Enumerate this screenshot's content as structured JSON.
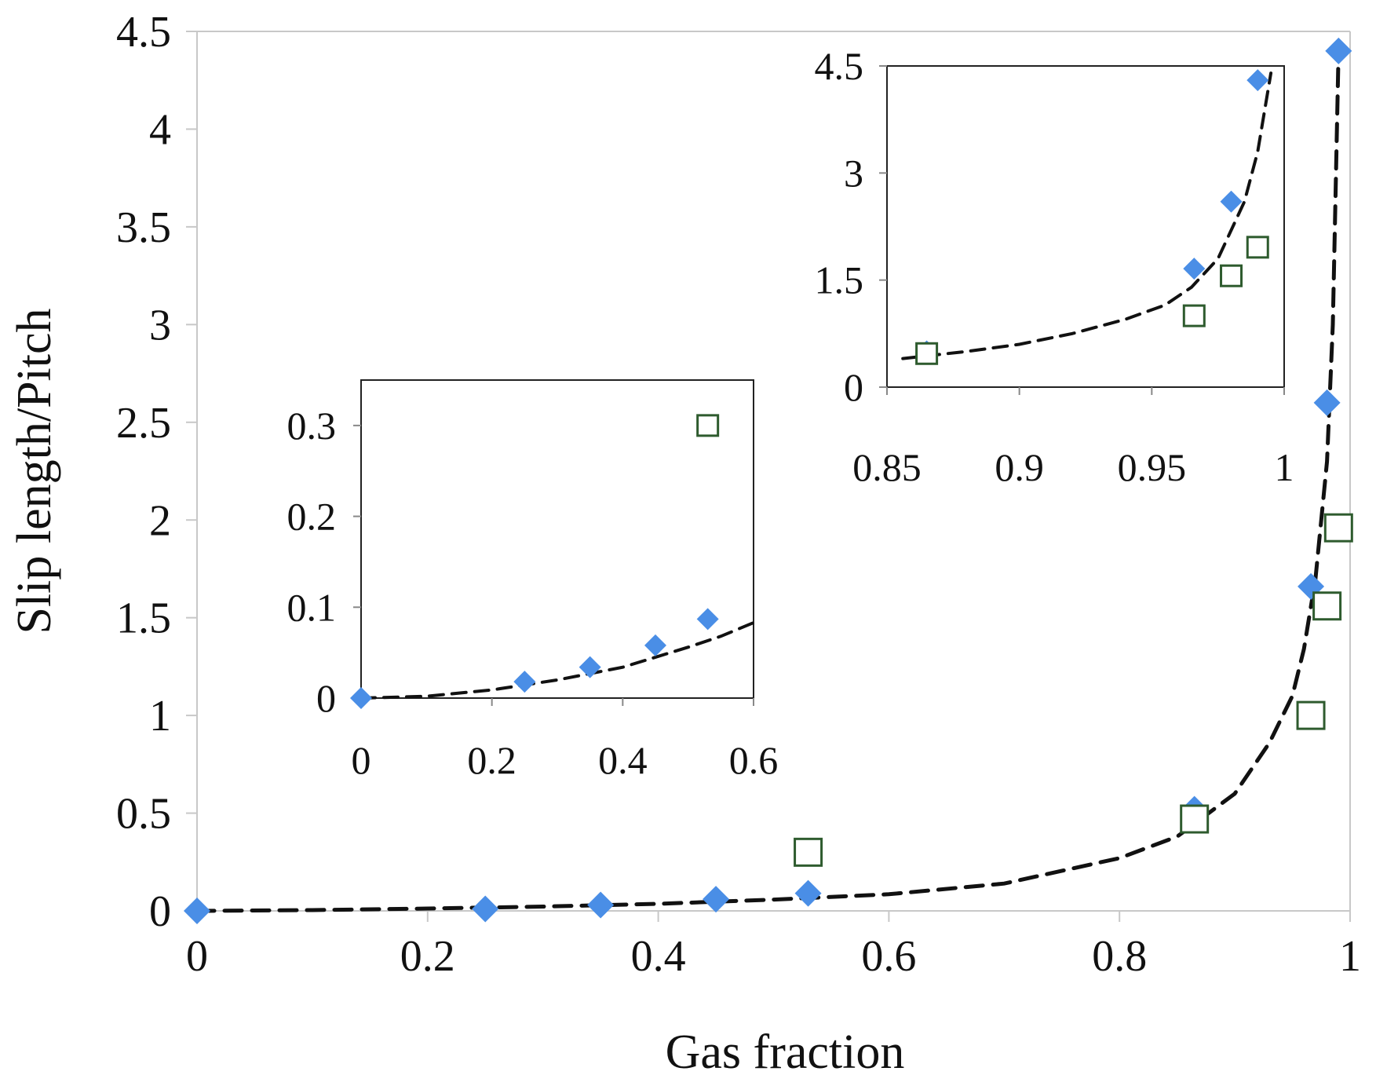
{
  "chart_data": [
    {
      "type": "scatter",
      "id": "main",
      "xlabel": "Gas fraction",
      "ylabel": "Slip length/Pitch",
      "xlim": [
        0,
        1
      ],
      "ylim": [
        0,
        4.5
      ],
      "xticks": [
        "0",
        "0.2",
        "0.4",
        "0.6",
        "0.8",
        "1"
      ],
      "yticks": [
        "0",
        "0.5",
        "1",
        "1.5",
        "2",
        "2.5",
        "3",
        "3.5",
        "4",
        "4.5"
      ],
      "series": [
        {
          "name": "filled diamonds",
          "marker": "diamond",
          "color": "#4a8ee6",
          "points": [
            [
              0,
              0
            ],
            [
              0.25,
              0.01
            ],
            [
              0.35,
              0.03
            ],
            [
              0.45,
              0.06
            ],
            [
              0.53,
              0.09
            ],
            [
              0.865,
              0.52
            ],
            [
              0.966,
              1.66
            ],
            [
              0.98,
              2.6
            ],
            [
              0.99,
              4.4
            ]
          ]
        },
        {
          "name": "open squares",
          "marker": "square-open",
          "color": "#2e5b2e",
          "points": [
            [
              0.53,
              0.3
            ],
            [
              0.865,
              0.47
            ],
            [
              0.966,
              1.0
            ],
            [
              0.98,
              1.56
            ],
            [
              0.99,
              1.96
            ]
          ]
        },
        {
          "name": "fit",
          "style": "dashed",
          "color": "#111111",
          "points": [
            [
              0,
              0
            ],
            [
              0.1,
              0.004
            ],
            [
              0.2,
              0.012
            ],
            [
              0.3,
              0.022
            ],
            [
              0.4,
              0.036
            ],
            [
              0.5,
              0.058
            ],
            [
              0.6,
              0.085
            ],
            [
              0.7,
              0.14
            ],
            [
              0.8,
              0.27
            ],
            [
              0.85,
              0.38
            ],
            [
              0.9,
              0.6
            ],
            [
              0.93,
              0.86
            ],
            [
              0.95,
              1.1
            ],
            [
              0.96,
              1.34
            ],
            [
              0.97,
              1.7
            ],
            [
              0.98,
              2.3
            ],
            [
              0.985,
              3.0
            ],
            [
              0.99,
              4.4
            ]
          ]
        }
      ]
    },
    {
      "type": "scatter",
      "id": "inset-low",
      "xlim": [
        0,
        0.6
      ],
      "ylim": [
        0,
        0.35
      ],
      "xticks": [
        "0",
        "0.2",
        "0.4",
        "0.6"
      ],
      "yticks": [
        "0",
        "0.1",
        "0.2",
        "0.3"
      ],
      "series": [
        {
          "name": "filled diamonds",
          "marker": "diamond",
          "color": "#4a8ee6",
          "points": [
            [
              0,
              0
            ],
            [
              0.25,
              0.018
            ],
            [
              0.35,
              0.034
            ],
            [
              0.45,
              0.058
            ],
            [
              0.53,
              0.087
            ]
          ]
        },
        {
          "name": "open squares",
          "marker": "square-open",
          "color": "#2e5b2e",
          "points": [
            [
              0.53,
              0.3
            ]
          ]
        },
        {
          "name": "fit",
          "style": "dashed",
          "color": "#111111",
          "points": [
            [
              0,
              0
            ],
            [
              0.1,
              0.002
            ],
            [
              0.2,
              0.009
            ],
            [
              0.3,
              0.02
            ],
            [
              0.4,
              0.034
            ],
            [
              0.5,
              0.056
            ],
            [
              0.55,
              0.068
            ],
            [
              0.6,
              0.083
            ]
          ]
        }
      ]
    },
    {
      "type": "scatter",
      "id": "inset-high",
      "xlim": [
        0.85,
        1
      ],
      "ylim": [
        0,
        4.5
      ],
      "xticks": [
        "0.85",
        "0.9",
        "0.95",
        "1"
      ],
      "yticks": [
        "0",
        "1.5",
        "3",
        "4.5"
      ],
      "series": [
        {
          "name": "filled diamonds",
          "marker": "diamond",
          "color": "#4a8ee6",
          "points": [
            [
              0.865,
              0.5
            ],
            [
              0.966,
              1.66
            ],
            [
              0.98,
              2.6
            ],
            [
              0.99,
              4.3
            ]
          ]
        },
        {
          "name": "open squares",
          "marker": "square-open",
          "color": "#2e5b2e",
          "points": [
            [
              0.865,
              0.47
            ],
            [
              0.966,
              1.0
            ],
            [
              0.98,
              1.56
            ],
            [
              0.99,
              1.96
            ]
          ]
        },
        {
          "name": "fit",
          "style": "dashed",
          "color": "#111111",
          "points": [
            [
              0.856,
              0.4
            ],
            [
              0.88,
              0.5
            ],
            [
              0.9,
              0.6
            ],
            [
              0.92,
              0.75
            ],
            [
              0.94,
              0.95
            ],
            [
              0.955,
              1.15
            ],
            [
              0.965,
              1.4
            ],
            [
              0.975,
              1.8
            ],
            [
              0.985,
              2.6
            ],
            [
              0.99,
              3.3
            ],
            [
              0.995,
              4.4
            ]
          ]
        }
      ]
    }
  ]
}
